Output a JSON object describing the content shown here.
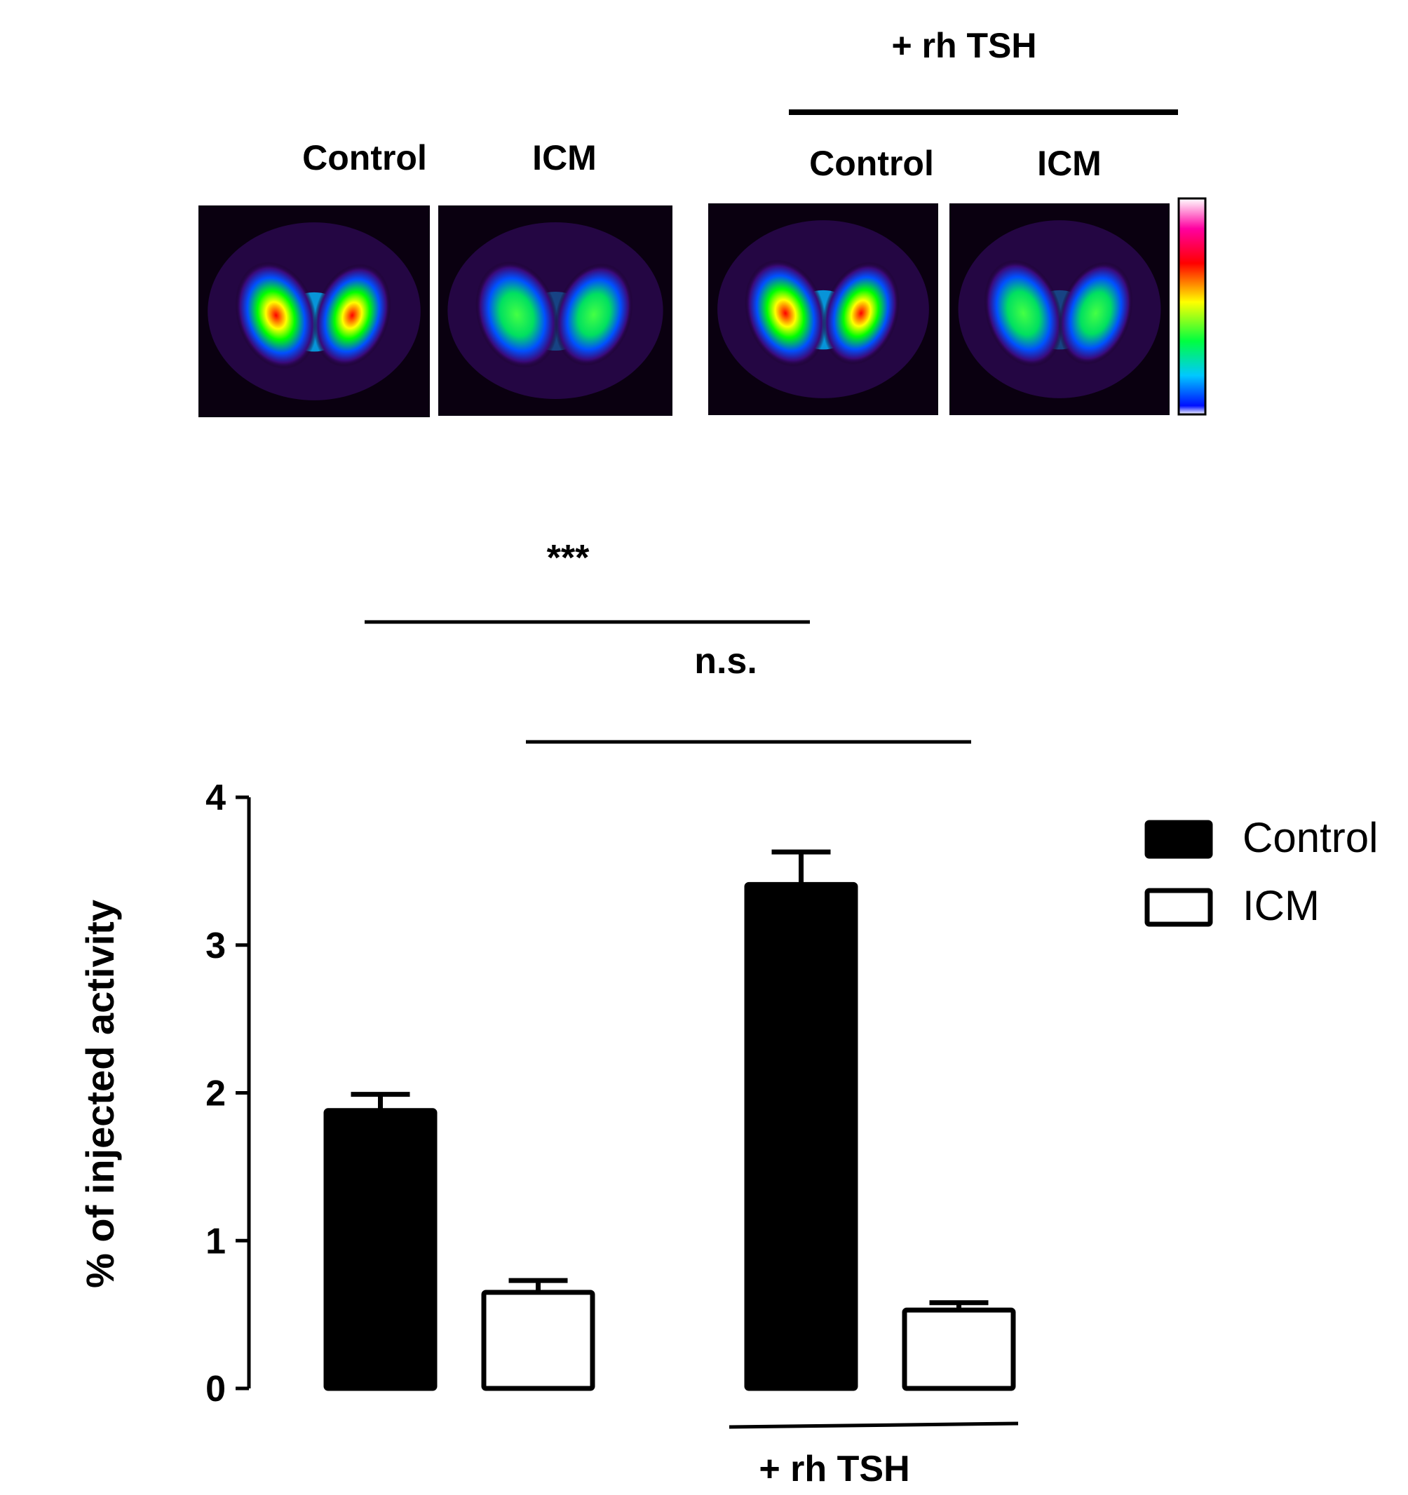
{
  "images": {
    "group_label": "+ rh TSH",
    "panels": [
      {
        "label": "Control",
        "intensity": 0.95
      },
      {
        "label": "ICM",
        "intensity": 0.55
      },
      {
        "label": "Control",
        "intensity": 1.0
      },
      {
        "label": "ICM",
        "intensity": 0.5
      }
    ]
  },
  "chart_data": {
    "type": "bar",
    "ylabel": "% of injected activity",
    "ylim": [
      0,
      4
    ],
    "yticks": [
      0,
      1,
      2,
      3,
      4
    ],
    "groups": [
      {
        "label": "",
        "bars": [
          {
            "series": "Control",
            "value": 1.88,
            "error": 0.11
          },
          {
            "series": "ICM",
            "value": 0.65,
            "error": 0.08
          }
        ]
      },
      {
        "label": "+ rh TSH",
        "bars": [
          {
            "series": "Control",
            "value": 3.41,
            "error": 0.22
          },
          {
            "series": "ICM",
            "value": 0.53,
            "error": 0.05
          }
        ]
      }
    ],
    "legend": {
      "position": "top-right",
      "items": [
        {
          "name": "Control",
          "fill": "#000000"
        },
        {
          "name": "ICM",
          "fill": "#ffffff"
        }
      ]
    },
    "annotations": [
      {
        "text": "***",
        "from": "Control",
        "to": "Control + rh TSH"
      },
      {
        "text": "n.s.",
        "from": "ICM",
        "to": "ICM + rh TSH"
      }
    ],
    "group_label": "+ rh TSH"
  }
}
